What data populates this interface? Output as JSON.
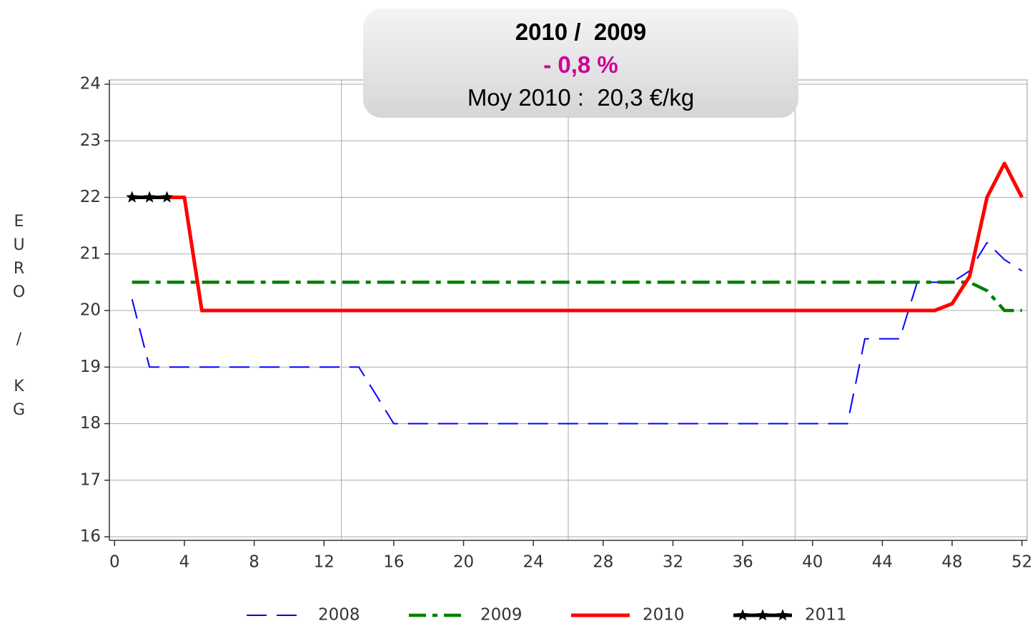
{
  "chart_data": {
    "type": "line",
    "info": {
      "line1": "2010 /  2009",
      "line2": "- 0,8 %",
      "line3": "Moy 2010 :  20,3 €/kg"
    },
    "ylabel": "EURO / KG",
    "x": [
      1,
      2,
      3,
      4,
      5,
      6,
      7,
      8,
      9,
      10,
      11,
      12,
      13,
      14,
      15,
      16,
      17,
      18,
      19,
      20,
      21,
      22,
      23,
      24,
      25,
      26,
      27,
      28,
      29,
      30,
      31,
      32,
      33,
      34,
      35,
      36,
      37,
      38,
      39,
      40,
      41,
      42,
      43,
      44,
      45,
      46,
      47,
      48,
      49,
      50,
      51,
      52
    ],
    "xlim": [
      -0.3,
      52.3
    ],
    "xticks": [
      0,
      4,
      8,
      12,
      16,
      20,
      24,
      28,
      32,
      36,
      40,
      44,
      48,
      52
    ],
    "xgrid": [
      13,
      26,
      39
    ],
    "ylim": [
      16,
      24
    ],
    "yticks": [
      16,
      17,
      18,
      19,
      20,
      21,
      22,
      23,
      24
    ],
    "grid": true,
    "series": [
      {
        "name": "2008",
        "color": "#0000ff",
        "style": "dashed",
        "values": [
          20.2,
          19,
          19,
          19,
          19,
          19,
          19,
          19,
          19,
          19,
          19,
          19,
          19,
          19,
          18.5,
          18,
          18,
          18,
          18,
          18,
          18,
          18,
          18,
          18,
          18,
          18,
          18,
          18,
          18,
          18,
          18,
          18,
          18,
          18,
          18,
          18,
          18,
          18,
          18,
          18,
          18,
          18,
          19.5,
          19.5,
          19.5,
          20.5,
          20.5,
          20.5,
          20.7,
          21.2,
          20.9,
          20.7
        ]
      },
      {
        "name": "2009",
        "color": "#008000",
        "style": "dashdot",
        "values": [
          20.5,
          20.5,
          20.5,
          20.5,
          20.5,
          20.5,
          20.5,
          20.5,
          20.5,
          20.5,
          20.5,
          20.5,
          20.5,
          20.5,
          20.5,
          20.5,
          20.5,
          20.5,
          20.5,
          20.5,
          20.5,
          20.5,
          20.5,
          20.5,
          20.5,
          20.5,
          20.5,
          20.5,
          20.5,
          20.5,
          20.5,
          20.5,
          20.5,
          20.5,
          20.5,
          20.5,
          20.5,
          20.5,
          20.5,
          20.5,
          20.5,
          20.5,
          20.5,
          20.5,
          20.5,
          20.5,
          20.5,
          20.5,
          20.5,
          20.35,
          20,
          20
        ]
      },
      {
        "name": "2010",
        "color": "#ff0000",
        "style": "solid",
        "values": [
          22,
          22,
          22,
          22,
          20,
          20,
          20,
          20,
          20,
          20,
          20,
          20,
          20,
          20,
          20,
          20,
          20,
          20,
          20,
          20,
          20,
          20,
          20,
          20,
          20,
          20,
          20,
          20,
          20,
          20,
          20,
          20,
          20,
          20,
          20,
          20,
          20,
          20,
          20,
          20,
          20,
          20,
          20,
          20,
          20,
          20,
          20,
          20.12,
          20.6,
          22,
          22.6,
          22
        ]
      },
      {
        "name": "2011",
        "color": "#000000",
        "style": "solid",
        "marker": "star",
        "values": [
          22,
          22,
          22,
          null,
          null,
          null,
          null,
          null,
          null,
          null,
          null,
          null,
          null,
          null,
          null,
          null,
          null,
          null,
          null,
          null,
          null,
          null,
          null,
          null,
          null,
          null,
          null,
          null,
          null,
          null,
          null,
          null,
          null,
          null,
          null,
          null,
          null,
          null,
          null,
          null,
          null,
          null,
          null,
          null,
          null,
          null,
          null,
          null,
          null,
          null,
          null,
          null
        ]
      }
    ]
  }
}
